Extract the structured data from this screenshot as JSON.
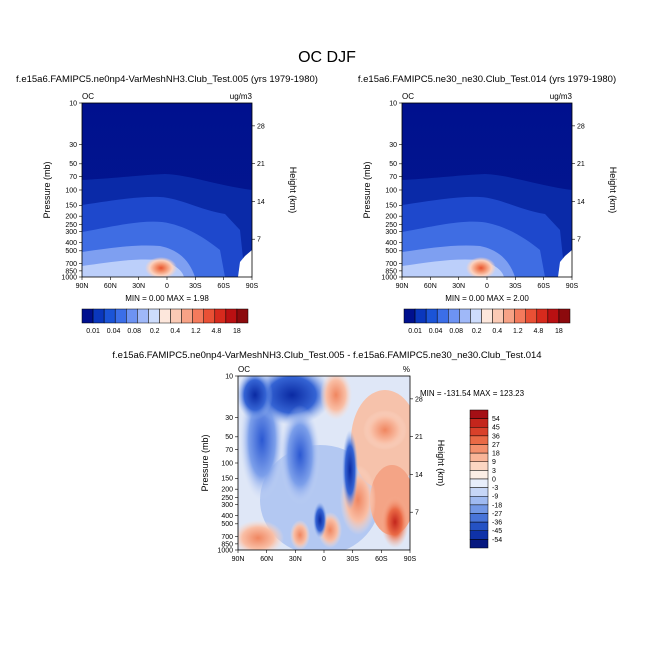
{
  "figure_title": "OC DJF",
  "chart_data": [
    {
      "type": "heatmap",
      "title": "f.e15a6.FAMIPC5.ne0np4-VarMeshNH3.Club_Test.005 (yrs 1979-1980)",
      "variable": "OC",
      "units": "ug/m3",
      "stats": "MIN =  0.00  MAX =  1.98",
      "xlabel": "",
      "ylabel": "Pressure (mb)",
      "y2label": "Height (km)",
      "xticks": [
        "90N",
        "60N",
        "30N",
        "0",
        "30S",
        "60S",
        "90S"
      ],
      "yticks": [
        10,
        30,
        50,
        70,
        100,
        150,
        200,
        250,
        300,
        400,
        500,
        700,
        850,
        1000
      ],
      "y2ticks": [
        28,
        21,
        14,
        7
      ],
      "y_scale": "log",
      "ylim": [
        1000,
        10
      ],
      "colorbar_labels": [
        "0.01",
        "0.04",
        "0.08",
        "0.2",
        "0.4",
        "1.2",
        "4.8",
        "18"
      ],
      "colorbar_colors": [
        "#00108e",
        "#0a37bd",
        "#1b54d7",
        "#3b6ee8",
        "#6d93f3",
        "#9fb8f8",
        "#cddcfc",
        "#fde7dc",
        "#fbcab5",
        "#f7a286",
        "#f47a5c",
        "#e95035",
        "#d72a1d",
        "#ba1012",
        "#8c0a0d"
      ],
      "colorbar_position": "bottom"
    },
    {
      "type": "heatmap",
      "title": "f.e15a6.FAMIPC5.ne30_ne30.Club_Test.014 (yrs 1979-1980)",
      "variable": "OC",
      "units": "ug/m3",
      "stats": "MIN =  0.00  MAX =  2.00",
      "xlabel": "",
      "ylabel": "Pressure (mb)",
      "y2label": "Height (km)",
      "xticks": [
        "90N",
        "60N",
        "30N",
        "0",
        "30S",
        "60S",
        "90S"
      ],
      "yticks": [
        10,
        30,
        50,
        70,
        100,
        150,
        200,
        250,
        300,
        400,
        500,
        700,
        850,
        1000
      ],
      "y2ticks": [
        28,
        21,
        14,
        7
      ],
      "y_scale": "log",
      "ylim": [
        1000,
        10
      ],
      "colorbar_labels": [
        "0.01",
        "0.04",
        "0.08",
        "0.2",
        "0.4",
        "1.2",
        "4.8",
        "18"
      ],
      "colorbar_colors": [
        "#00108e",
        "#0a37bd",
        "#1b54d7",
        "#3b6ee8",
        "#6d93f3",
        "#9fb8f8",
        "#cddcfc",
        "#fde7dc",
        "#fbcab5",
        "#f7a286",
        "#f47a5c",
        "#e95035",
        "#d72a1d",
        "#ba1012",
        "#8c0a0d"
      ],
      "colorbar_position": "bottom"
    },
    {
      "type": "heatmap",
      "title": "f.e15a6.FAMIPC5.ne0np4-VarMeshNH3.Club_Test.005 - f.e15a6.FAMIPC5.ne30_ne30.Club_Test.014",
      "variable": "OC",
      "units": "%",
      "stats": "MIN = -131.54  MAX = 123.23",
      "xlabel": "",
      "ylabel": "Pressure (mb)",
      "y2label": "Height (km)",
      "xticks": [
        "90N",
        "60N",
        "30N",
        "0",
        "30S",
        "60S",
        "90S"
      ],
      "yticks": [
        10,
        30,
        50,
        70,
        100,
        150,
        200,
        250,
        300,
        400,
        500,
        700,
        850,
        1000
      ],
      "y2ticks": [
        28,
        21,
        14,
        7
      ],
      "y_scale": "log",
      "ylim": [
        1000,
        10
      ],
      "colorbar_labels": [
        "54",
        "45",
        "36",
        "27",
        "18",
        "9",
        "3",
        "0",
        "-3",
        "-9",
        "-18",
        "-27",
        "-36",
        "-45",
        "-54"
      ],
      "colorbar_colors": [
        "#a50f15",
        "#c4261c",
        "#d9412a",
        "#ea6a46",
        "#f4906d",
        "#f9b598",
        "#fcd6c2",
        "#fbeee6",
        "#e8eefb",
        "#c6d6f7",
        "#9fbaf1",
        "#7398e6",
        "#4874d9",
        "#2552c4",
        "#0f32a8",
        "#06187f"
      ],
      "colorbar_position": "right"
    }
  ]
}
